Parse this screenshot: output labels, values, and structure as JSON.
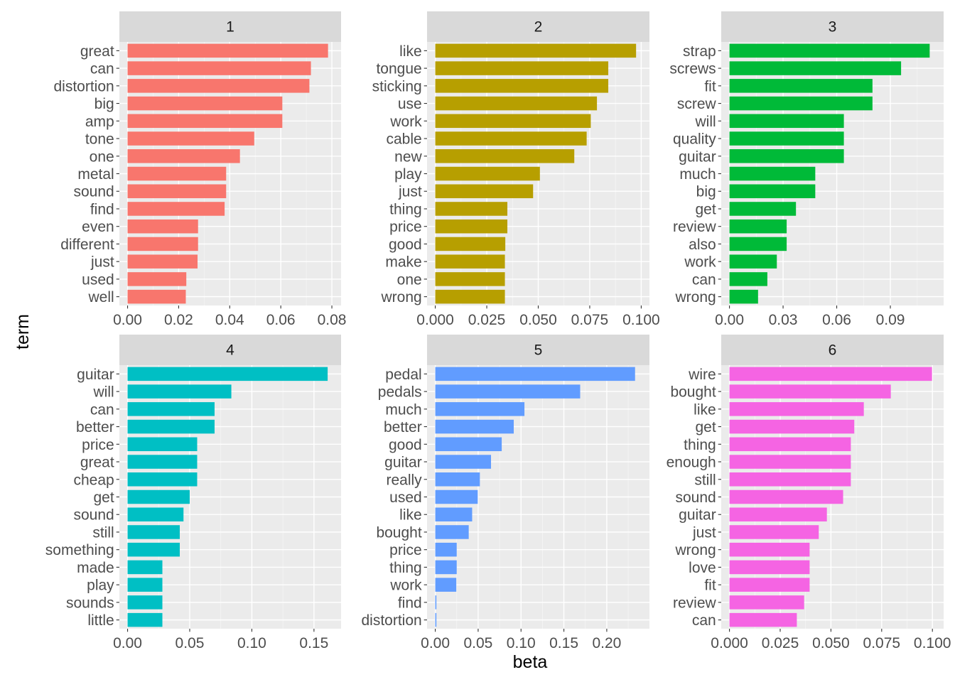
{
  "chart_data": {
    "type": "bar",
    "orientation": "horizontal",
    "xlabel": "beta",
    "ylabel": "term",
    "grid": true,
    "facets": [
      {
        "label": "1",
        "color": "#F8766D",
        "xlim": [
          0,
          0.082
        ],
        "xticks": [
          0.0,
          0.02,
          0.04,
          0.06,
          0.08
        ],
        "xtick_labels": [
          "0.00",
          "0.02",
          "0.04",
          "0.06",
          "0.08"
        ],
        "categories": [
          "great",
          "can",
          "distortion",
          "big",
          "amp",
          "tone",
          "one",
          "metal",
          "sound",
          "find",
          "even",
          "different",
          "just",
          "used",
          "well"
        ],
        "values": [
          0.0785,
          0.0718,
          0.0712,
          0.0606,
          0.0606,
          0.0496,
          0.044,
          0.0386,
          0.0386,
          0.038,
          0.0276,
          0.0276,
          0.0274,
          0.023,
          0.0228
        ]
      },
      {
        "label": "2",
        "color": "#B79F00",
        "xlim": [
          0,
          0.102
        ],
        "xticks": [
          0.0,
          0.025,
          0.05,
          0.075,
          0.1
        ],
        "xtick_labels": [
          "0.000",
          "0.025",
          "0.050",
          "0.075",
          "0.100"
        ],
        "categories": [
          "like",
          "tongue",
          "sticking",
          "use",
          "work",
          "cable",
          "new",
          "play",
          "just",
          "thing",
          "price",
          "good",
          "make",
          "one",
          "wrong"
        ],
        "values": [
          0.0975,
          0.084,
          0.084,
          0.0785,
          0.0755,
          0.0735,
          0.0675,
          0.0508,
          0.0475,
          0.035,
          0.035,
          0.034,
          0.0338,
          0.0338,
          0.0338
        ]
      },
      {
        "label": "3",
        "color": "#00BA38",
        "xlim": [
          0,
          0.1175
        ],
        "xticks": [
          0.0,
          0.03,
          0.06,
          0.09
        ],
        "xtick_labels": [
          "0.00",
          "0.03",
          "0.06",
          "0.09"
        ],
        "categories": [
          "strap",
          "screws",
          "fit",
          "screw",
          "will",
          "quality",
          "guitar",
          "much",
          "big",
          "get",
          "review",
          "also",
          "work",
          "can",
          "wrong"
        ],
        "values": [
          0.112,
          0.096,
          0.08,
          0.08,
          0.064,
          0.064,
          0.064,
          0.048,
          0.048,
          0.0372,
          0.032,
          0.032,
          0.0265,
          0.0212,
          0.016
        ]
      },
      {
        "label": "4",
        "color": "#00BFC4",
        "xlim": [
          0,
          0.1685
        ],
        "xticks": [
          0.0,
          0.05,
          0.1,
          0.15
        ],
        "xtick_labels": [
          "0.00",
          "0.05",
          "0.10",
          "0.15"
        ],
        "categories": [
          "guitar",
          "will",
          "can",
          "better",
          "price",
          "great",
          "cheap",
          "get",
          "sound",
          "still",
          "something",
          "made",
          "play",
          "sounds",
          "little"
        ],
        "values": [
          0.161,
          0.0835,
          0.07,
          0.07,
          0.056,
          0.056,
          0.056,
          0.05,
          0.045,
          0.042,
          0.042,
          0.028,
          0.028,
          0.028,
          0.028
        ]
      },
      {
        "label": "5",
        "color": "#619CFF",
        "xlim": [
          0,
          0.245
        ],
        "xticks": [
          0.0,
          0.05,
          0.1,
          0.15,
          0.2
        ],
        "xtick_labels": [
          "0.00",
          "0.05",
          "0.10",
          "0.15",
          "0.20"
        ],
        "categories": [
          "pedal",
          "pedals",
          "much",
          "better",
          "good",
          "guitar",
          "really",
          "used",
          "like",
          "bought",
          "price",
          "thing",
          "work",
          "find",
          "distortion"
        ],
        "values": [
          0.233,
          0.169,
          0.104,
          0.0915,
          0.0775,
          0.065,
          0.052,
          0.0495,
          0.043,
          0.039,
          0.025,
          0.025,
          0.0245,
          0.0013,
          0.0013
        ]
      },
      {
        "label": "6",
        "color": "#F564E3",
        "xlim": [
          0,
          0.1035
        ],
        "xticks": [
          0.0,
          0.025,
          0.05,
          0.075,
          0.1
        ],
        "xtick_labels": [
          "0.000",
          "0.025",
          "0.050",
          "0.075",
          "0.100"
        ],
        "categories": [
          "wire",
          "bought",
          "like",
          "get",
          "thing",
          "enough",
          "still",
          "sound",
          "guitar",
          "just",
          "wrong",
          "love",
          "fit",
          "review",
          "can"
        ],
        "values": [
          0.0998,
          0.0795,
          0.0662,
          0.0615,
          0.0598,
          0.0598,
          0.0598,
          0.056,
          0.048,
          0.044,
          0.0395,
          0.0395,
          0.0395,
          0.0368,
          0.0332
        ]
      }
    ]
  }
}
